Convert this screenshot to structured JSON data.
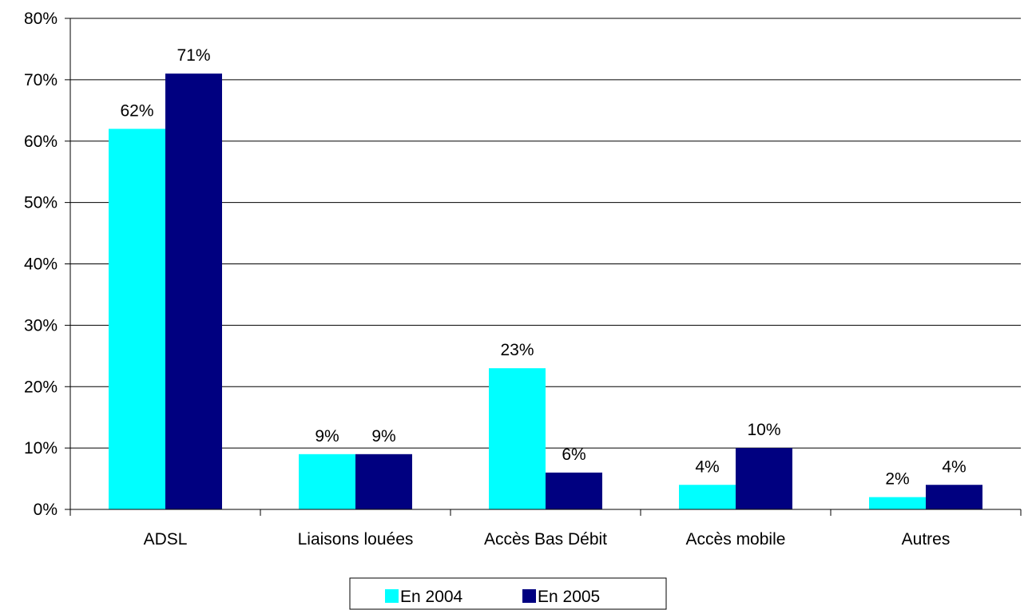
{
  "chart_data": {
    "type": "bar",
    "title": "",
    "xlabel": "",
    "ylabel": "",
    "categories": [
      "ADSL",
      "Liaisons louées",
      "Accès Bas Débit",
      "Accès mobile",
      "Autres"
    ],
    "series": [
      {
        "name": "En 2004",
        "color": "#00FFFF",
        "values": [
          62,
          9,
          23,
          4,
          2
        ],
        "labels": [
          "62%",
          "9%",
          "23%",
          "4%",
          "2%"
        ]
      },
      {
        "name": "En 2005",
        "color": "#000080",
        "values": [
          71,
          9,
          6,
          10,
          4
        ],
        "labels": [
          "71%",
          "9%",
          "6%",
          "10%",
          "4%"
        ]
      }
    ],
    "ylim": [
      0,
      80
    ],
    "yticks": [
      0,
      10,
      20,
      30,
      40,
      50,
      60,
      70,
      80
    ],
    "ytick_labels": [
      "0%",
      "10%",
      "20%",
      "30%",
      "40%",
      "50%",
      "60%",
      "70%",
      "80%"
    ],
    "grid": true,
    "legend_position": "bottom-center"
  }
}
